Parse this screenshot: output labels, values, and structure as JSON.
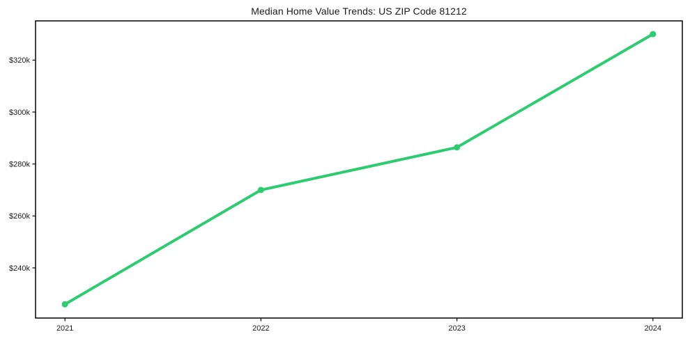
{
  "title": "Median Home Value Trends: US ZIP Code 81212",
  "colors": {
    "line": "#2ecc71",
    "marker": "#2ecc71",
    "spine": "#000000",
    "text": "#1a1a1a",
    "background": "#ffffff"
  },
  "chart_data": {
    "type": "line",
    "title": "Median Home Value Trends: US ZIP Code 81212",
    "x": [
      2021,
      2022,
      2023,
      2024
    ],
    "series": [
      {
        "name": "Median Home Value",
        "values": [
          226000,
          270000,
          286400,
          330000
        ]
      }
    ],
    "xlabel": "",
    "ylabel": "",
    "x_tick_labels": [
      "2021",
      "2022",
      "2023",
      "2024"
    ],
    "y_ticks": [
      240000,
      260000,
      280000,
      300000,
      320000
    ],
    "y_tick_labels": [
      "$240k",
      "$260k",
      "$280k",
      "$300k",
      "$320k"
    ],
    "xlim": [
      2020.85,
      2024.15
    ],
    "ylim": [
      220700,
      335100
    ],
    "grid": false,
    "legend_position": "none",
    "line_width": 4,
    "marker": "circle",
    "marker_size": 9
  }
}
